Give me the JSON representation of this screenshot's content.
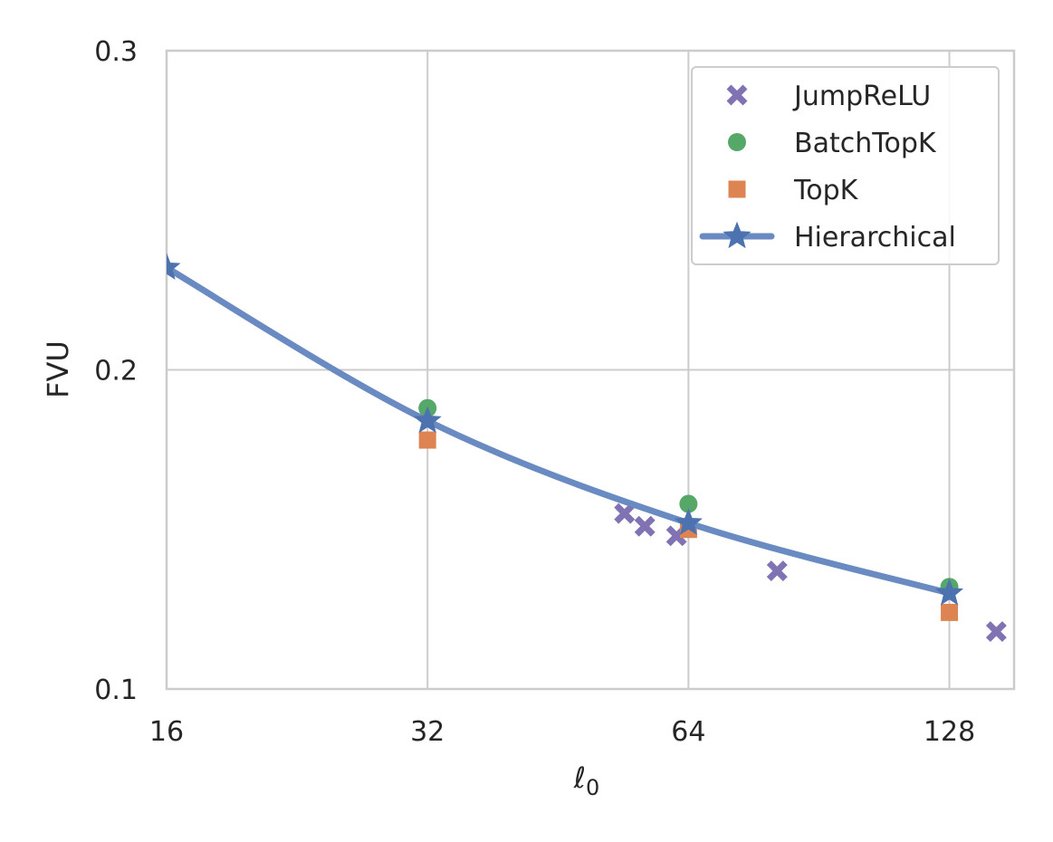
{
  "chart_data": {
    "type": "scatter",
    "title": "",
    "xlabel": "ℓ",
    "xlabel_subscript": "0",
    "ylabel": "FVU",
    "xscale": "log2",
    "xlim": [
      16,
      152
    ],
    "ylim": [
      0.1,
      0.3
    ],
    "xticks": [
      16,
      32,
      64,
      128
    ],
    "xtick_labels": [
      "16",
      "32",
      "64",
      "128"
    ],
    "yticks": [
      0.1,
      0.2,
      0.3
    ],
    "ytick_labels": [
      "0.1",
      "0.2",
      "0.3"
    ],
    "grid": true,
    "legend_position": "top-right",
    "series": [
      {
        "name": "JumpReLU",
        "marker": "x",
        "color": "#8172b3",
        "points": [
          [
            54,
            0.155
          ],
          [
            57,
            0.151
          ],
          [
            62,
            0.148
          ],
          [
            81,
            0.137
          ],
          [
            145,
            0.118
          ]
        ]
      },
      {
        "name": "BatchTopK",
        "marker": "circle",
        "color": "#55a868",
        "points": [
          [
            32,
            0.188
          ],
          [
            64,
            0.158
          ],
          [
            128,
            0.132
          ]
        ]
      },
      {
        "name": "TopK",
        "marker": "square",
        "color": "#dd8452",
        "points": [
          [
            32,
            0.178
          ],
          [
            64,
            0.15
          ],
          [
            128,
            0.124
          ]
        ]
      },
      {
        "name": "Hierarchical",
        "marker": "star",
        "line": true,
        "color": "#4c72b0",
        "points": [
          [
            16,
            0.232
          ],
          [
            32,
            0.184
          ],
          [
            64,
            0.152
          ],
          [
            128,
            0.13
          ]
        ]
      }
    ]
  }
}
